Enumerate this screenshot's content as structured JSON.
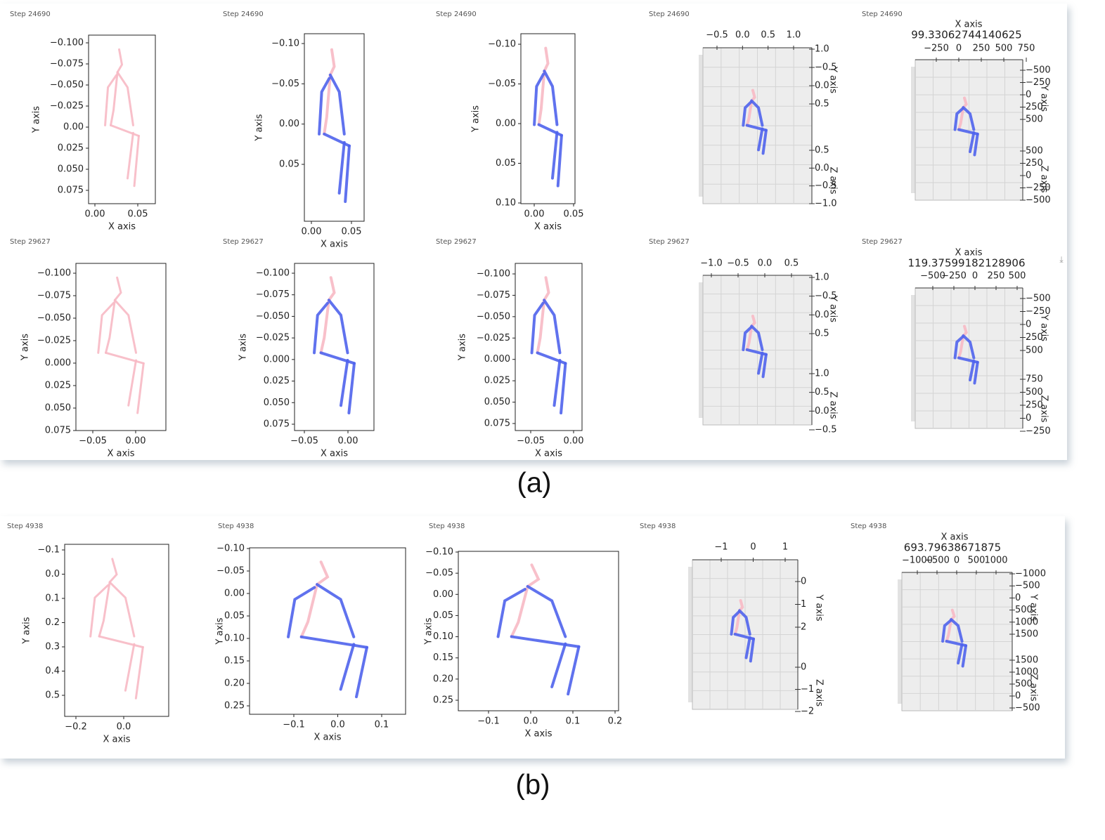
{
  "sections": [
    {
      "label": "(a)",
      "rows": [
        {
          "panels": [
            {
              "step": "Step 24690",
              "xlabel": "X axis",
              "ylabel": "Y axis",
              "xticks": [
                "0.00",
                "0.05"
              ],
              "yticks": [
                "−0.100",
                "−0.075",
                "−0.050",
                "−0.025",
                "0.00",
                "0.025",
                "0.050",
                "0.075"
              ]
            },
            {
              "step": "Step 24690",
              "xlabel": "X axis",
              "ylabel": "Y axis",
              "xticks": [
                "0.00",
                "0.05"
              ],
              "yticks": [
                "−0.10",
                "−0.05",
                "0.00",
                "0.05"
              ]
            },
            {
              "step": "Step 24690",
              "xlabel": "X axis",
              "ylabel": "Y axis",
              "xticks": [
                "0.00",
                "0.05"
              ],
              "yticks": [
                "−0.10",
                "−0.05",
                "0.00",
                "0.05",
                "0.10"
              ]
            },
            {
              "step": "Step 24690",
              "ylabel": "Y axis",
              "zlabel": "Z axis",
              "xticks": [
                "−0.5",
                "0.0",
                "0.5",
                "1.0"
              ],
              "yticks": [
                "1.0",
                "−0.5",
                "0.0",
                "0.5"
              ],
              "zticks": [
                "0.5",
                "0.0",
                "−0.5",
                "−1.0"
              ]
            },
            {
              "step": "Step 24690",
              "title": "X axis",
              "value": "99.33062744140625",
              "ylabel": "Y axis",
              "zlabel": "Z axis",
              "xticks": [
                "−250",
                "0",
                "250",
                "500",
                "750"
              ],
              "yticks": [
                "−500",
                "−250",
                "0",
                "250",
                "500"
              ],
              "zticks": [
                "500",
                "250",
                "0",
                "−250",
                "−500"
              ]
            }
          ]
        },
        {
          "panels": [
            {
              "step": "Step 29627",
              "xlabel": "X axis",
              "ylabel": "Y axis",
              "xticks": [
                "−0.05",
                "0.00"
              ],
              "yticks": [
                "−0.100",
                "−0.075",
                "−0.050",
                "−0.025",
                "0.000",
                "0.025",
                "0.050",
                "0.075"
              ]
            },
            {
              "step": "Step 29627",
              "xlabel": "X axis",
              "ylabel": "Y axis",
              "xticks": [
                "−0.05",
                "0.00"
              ],
              "yticks": [
                "−0.100",
                "−0.075",
                "−0.050",
                "−0.025",
                "0.000",
                "0.025",
                "0.050",
                "0.075"
              ]
            },
            {
              "step": "Step 29627",
              "xlabel": "X axis",
              "ylabel": "Y axis",
              "xticks": [
                "−0.05",
                "0.00"
              ],
              "yticks": [
                "−0.100",
                "−0.075",
                "−0.050",
                "−0.025",
                "0.000",
                "0.025",
                "0.050",
                "0.075"
              ]
            },
            {
              "step": "Step 29627",
              "ylabel": "Y axis",
              "zlabel": "Z axis",
              "xticks": [
                "−1.0",
                "−0.5",
                "0.0",
                "0.5"
              ],
              "yticks": [
                "1.0",
                "−0.5",
                "0.0",
                "0.5"
              ],
              "zticks": [
                "1.0",
                "0.5",
                "0.0",
                "−0.5"
              ]
            },
            {
              "step": "Step 29627",
              "title": "X axis",
              "value": "119.37599182128906",
              "ylabel": "Y axis",
              "zlabel": "Z axis",
              "xticks": [
                "−500",
                "−250",
                "0",
                "250",
                "500"
              ],
              "yticks": [
                "−500",
                "−250",
                "0",
                "250",
                "500"
              ],
              "zticks": [
                "750",
                "500",
                "250",
                "0",
                "−250"
              ]
            }
          ]
        }
      ]
    },
    {
      "label": "(b)",
      "rows": [
        {
          "panels": [
            {
              "step": "Step 4938",
              "xlabel": "X axis",
              "ylabel": "Y axis",
              "xticks": [
                "−0.2",
                "0.0"
              ],
              "yticks": [
                "−0.1",
                "0.0",
                "0.1",
                "0.2",
                "0.3",
                "0.4",
                "0.5"
              ]
            },
            {
              "step": "Step 4938",
              "xlabel": "X axis",
              "ylabel": "Y axis",
              "xticks": [
                "−0.1",
                "0.0",
                "0.1"
              ],
              "yticks": [
                "−0.10",
                "−0.05",
                "0.00",
                "0.05",
                "0.10",
                "0.15",
                "0.20",
                "0.25"
              ]
            },
            {
              "step": "Step 4938",
              "xlabel": "X axis",
              "ylabel": "Y axis",
              "xticks": [
                "−0.1",
                "0.0",
                "0.1",
                "0.2"
              ],
              "yticks": [
                "−0.10",
                "−0.05",
                "0.00",
                "0.05",
                "0.10",
                "0.15",
                "0.20",
                "0.25"
              ]
            },
            {
              "step": "Step 4938",
              "ylabel": "Y axis",
              "zlabel": "Z axis",
              "xticks": [
                "−1",
                "0",
                "1"
              ],
              "yticks": [
                "0",
                "1",
                "2"
              ],
              "zticks": [
                "0",
                "−1",
                "−2"
              ]
            },
            {
              "step": "Step 4938",
              "title": "X axis",
              "value": "693.79638671875",
              "ylabel": "Y axis",
              "zlabel": "Z axis",
              "xticks": [
                "−1000",
                "−500",
                "0",
                "500",
                "1000"
              ],
              "yticks": [
                "−1000",
                "−500",
                "0",
                "500",
                "1000",
                "1500"
              ],
              "zticks": [
                "1500",
                "1000",
                "500",
                "0",
                "−500"
              ]
            }
          ]
        }
      ]
    }
  ]
}
